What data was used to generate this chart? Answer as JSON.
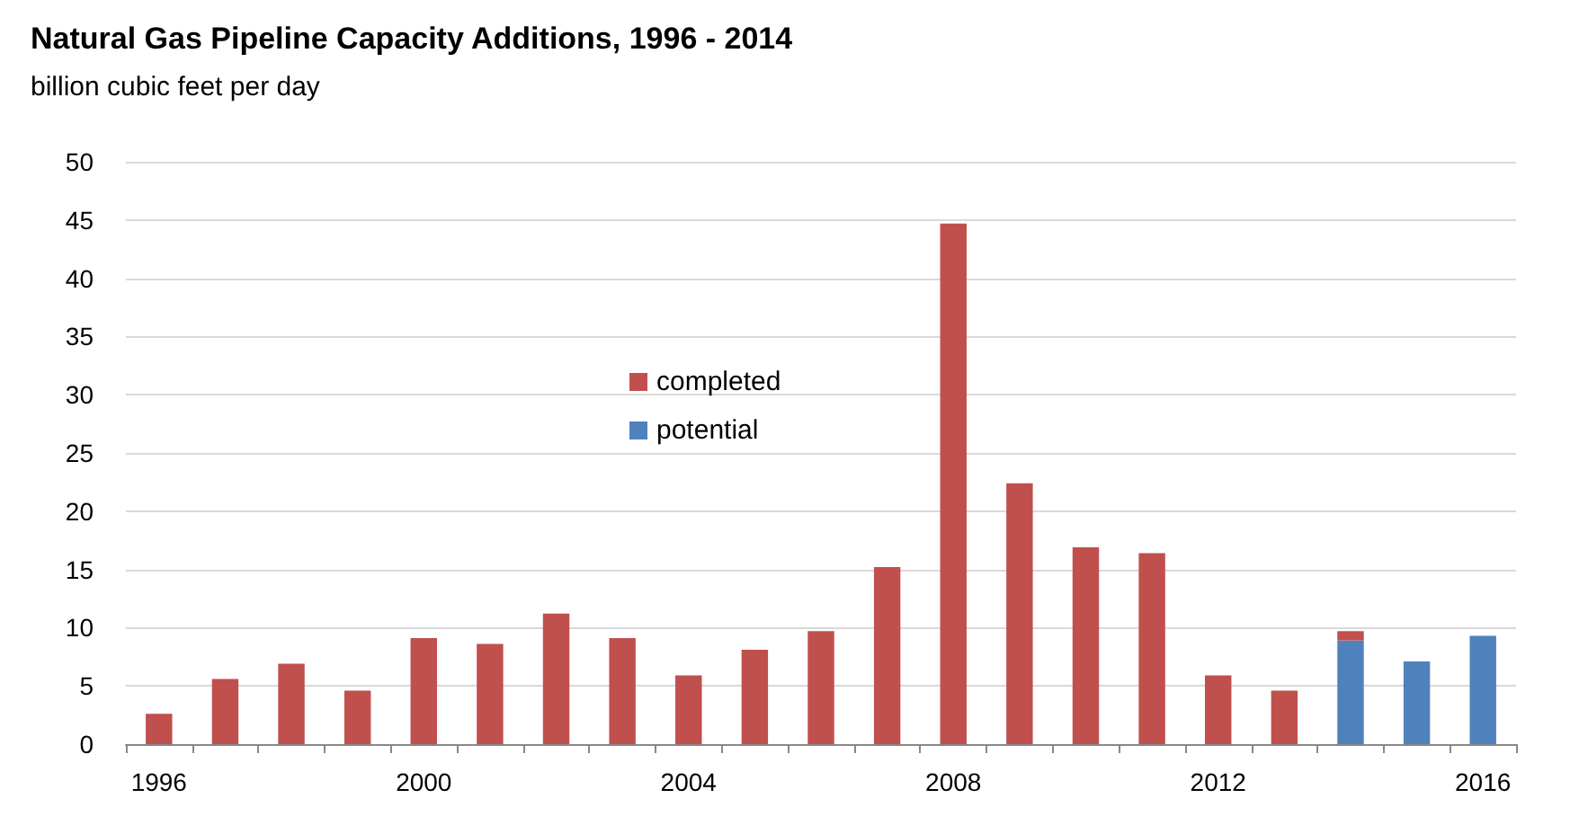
{
  "chart_data": {
    "type": "bar",
    "title": "Natural Gas Pipeline Capacity Additions, 1996 - 2014",
    "ylabel": "billion cubic feet per day",
    "categories": [
      "1996",
      null,
      null,
      null,
      "2000",
      null,
      null,
      null,
      "2004",
      null,
      null,
      null,
      "2008",
      null,
      null,
      null,
      "2012",
      null,
      null,
      null,
      "2016"
    ],
    "stacked": true,
    "series": [
      {
        "name": "potential",
        "color": "#4f81bd",
        "values": [
          null,
          null,
          null,
          null,
          null,
          null,
          null,
          null,
          null,
          null,
          null,
          null,
          null,
          null,
          null,
          null,
          null,
          null,
          8.9,
          7.1,
          9.3
        ]
      },
      {
        "name": "completed",
        "color": "#c0504d",
        "values": [
          2.6,
          5.6,
          6.9,
          4.6,
          9.1,
          8.6,
          11.2,
          9.1,
          5.9,
          8.1,
          9.7,
          15.2,
          44.7,
          22.4,
          16.9,
          16.4,
          5.9,
          4.6,
          0.8,
          null,
          null
        ]
      }
    ],
    "ylim": [
      0,
      50
    ],
    "yticks": [
      0,
      5,
      10,
      15,
      20,
      25,
      30,
      35,
      40,
      45,
      50
    ],
    "grid": "y",
    "legend": "center"
  }
}
